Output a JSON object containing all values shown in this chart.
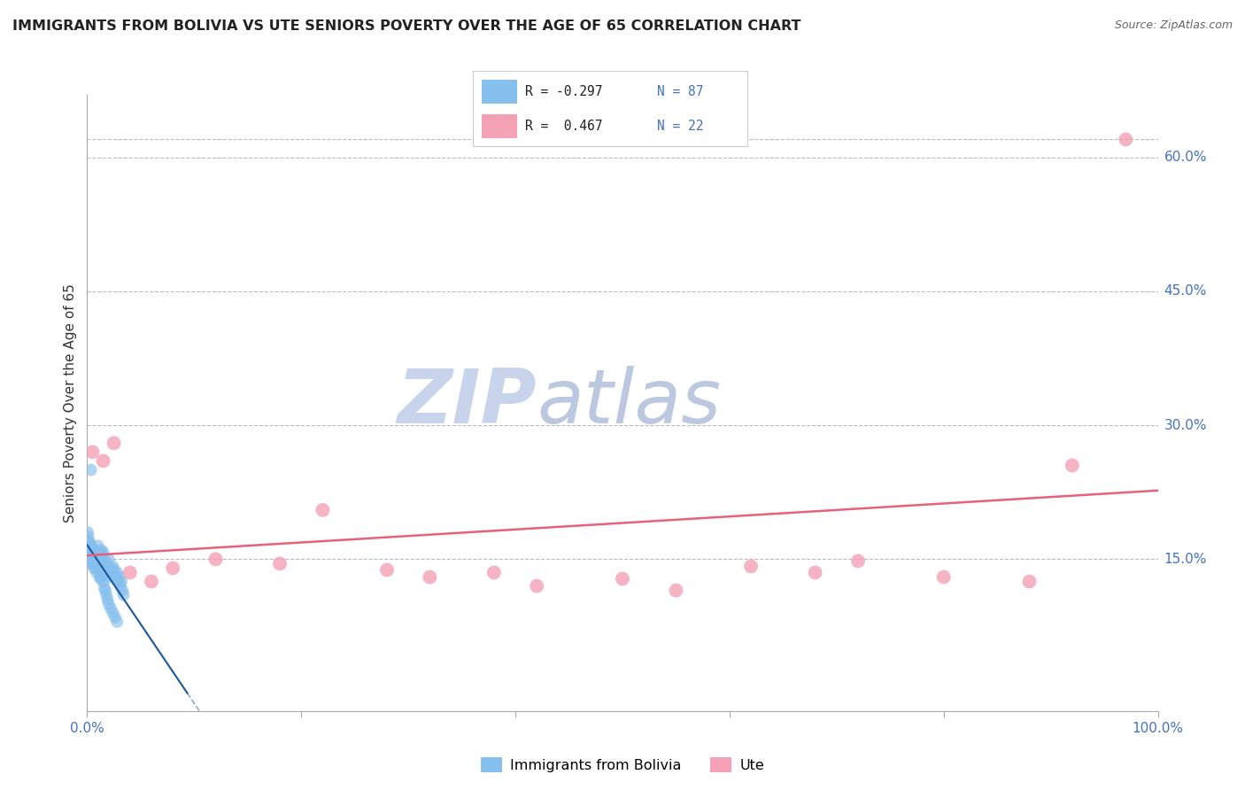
{
  "title": "IMMIGRANTS FROM BOLIVIA VS UTE SENIORS POVERTY OVER THE AGE OF 65 CORRELATION CHART",
  "source": "Source: ZipAtlas.com",
  "ylabel": "Seniors Poverty Over the Age of 65",
  "xlim": [
    0,
    100
  ],
  "ylim": [
    -2,
    67
  ],
  "ytick_positions": [
    0,
    15,
    30,
    45,
    60
  ],
  "ytick_labels": [
    "",
    "15.0%",
    "30.0%",
    "45.0%",
    "60.0%"
  ],
  "blue_color": "#85BFED",
  "pink_color": "#F4A0B5",
  "blue_line_color": "#1A56A0",
  "pink_line_color": "#E8607A",
  "blue_line_dash": [
    4,
    3
  ],
  "watermark_ZIP": "ZIP",
  "watermark_atlas": "atlas",
  "watermark_color_ZIP": "#D0DCF0",
  "watermark_color_atlas": "#C0D0E8",
  "background_color": "#FFFFFF",
  "bolivia_x": [
    0.1,
    0.15,
    0.2,
    0.25,
    0.3,
    0.35,
    0.4,
    0.45,
    0.5,
    0.55,
    0.6,
    0.65,
    0.7,
    0.75,
    0.8,
    0.85,
    0.9,
    0.95,
    1.0,
    1.0,
    1.1,
    1.1,
    1.2,
    1.2,
    1.3,
    1.3,
    1.4,
    1.4,
    1.5,
    1.5,
    1.6,
    1.7,
    1.8,
    1.9,
    2.0,
    2.0,
    2.1,
    2.2,
    2.3,
    2.4,
    2.5,
    2.6,
    2.7,
    2.8,
    2.9,
    3.0,
    3.1,
    3.2,
    3.3,
    3.4,
    0.05,
    0.1,
    0.15,
    0.2,
    0.25,
    0.3,
    0.35,
    0.4,
    0.45,
    0.5,
    0.55,
    0.6,
    0.65,
    0.7,
    0.75,
    0.8,
    0.85,
    0.9,
    0.95,
    1.0,
    1.05,
    1.1,
    1.15,
    1.2,
    1.25,
    1.3,
    1.4,
    1.5,
    1.6,
    1.7,
    1.8,
    1.9,
    2.0,
    2.2,
    2.4,
    2.6,
    2.8
  ],
  "bolivia_y": [
    16.0,
    15.5,
    17.0,
    16.5,
    14.5,
    15.0,
    15.8,
    14.8,
    16.2,
    15.0,
    15.5,
    14.0,
    16.0,
    15.5,
    14.5,
    15.0,
    14.8,
    15.2,
    16.5,
    15.0,
    14.5,
    15.8,
    15.2,
    14.0,
    15.5,
    16.0,
    14.2,
    15.5,
    15.8,
    14.5,
    14.0,
    14.8,
    13.5,
    14.0,
    13.8,
    15.0,
    13.0,
    14.0,
    13.5,
    14.2,
    13.8,
    13.0,
    12.8,
    13.5,
    12.5,
    13.0,
    12.0,
    12.5,
    11.5,
    11.0,
    18.0,
    17.5,
    16.8,
    16.2,
    15.8,
    15.0,
    25.0,
    16.5,
    15.2,
    14.8,
    15.0,
    14.5,
    15.2,
    16.0,
    15.5,
    14.8,
    14.0,
    13.5,
    14.2,
    14.8,
    15.5,
    14.0,
    13.8,
    13.0,
    12.8,
    14.5,
    13.2,
    12.5,
    11.8,
    11.5,
    11.0,
    10.5,
    10.0,
    9.5,
    9.0,
    8.5,
    8.0
  ],
  "ute_x": [
    0.5,
    1.5,
    2.5,
    4.0,
    6.0,
    8.0,
    12.0,
    18.0,
    22.0,
    28.0,
    32.0,
    38.0,
    42.0,
    50.0,
    55.0,
    62.0,
    68.0,
    72.0,
    80.0,
    88.0,
    92.0,
    97.0
  ],
  "ute_y": [
    27.0,
    26.0,
    28.0,
    13.5,
    12.5,
    14.0,
    15.0,
    14.5,
    20.5,
    13.8,
    13.0,
    13.5,
    12.0,
    12.8,
    11.5,
    14.2,
    13.5,
    14.8,
    13.0,
    12.5,
    25.5,
    62.0
  ]
}
